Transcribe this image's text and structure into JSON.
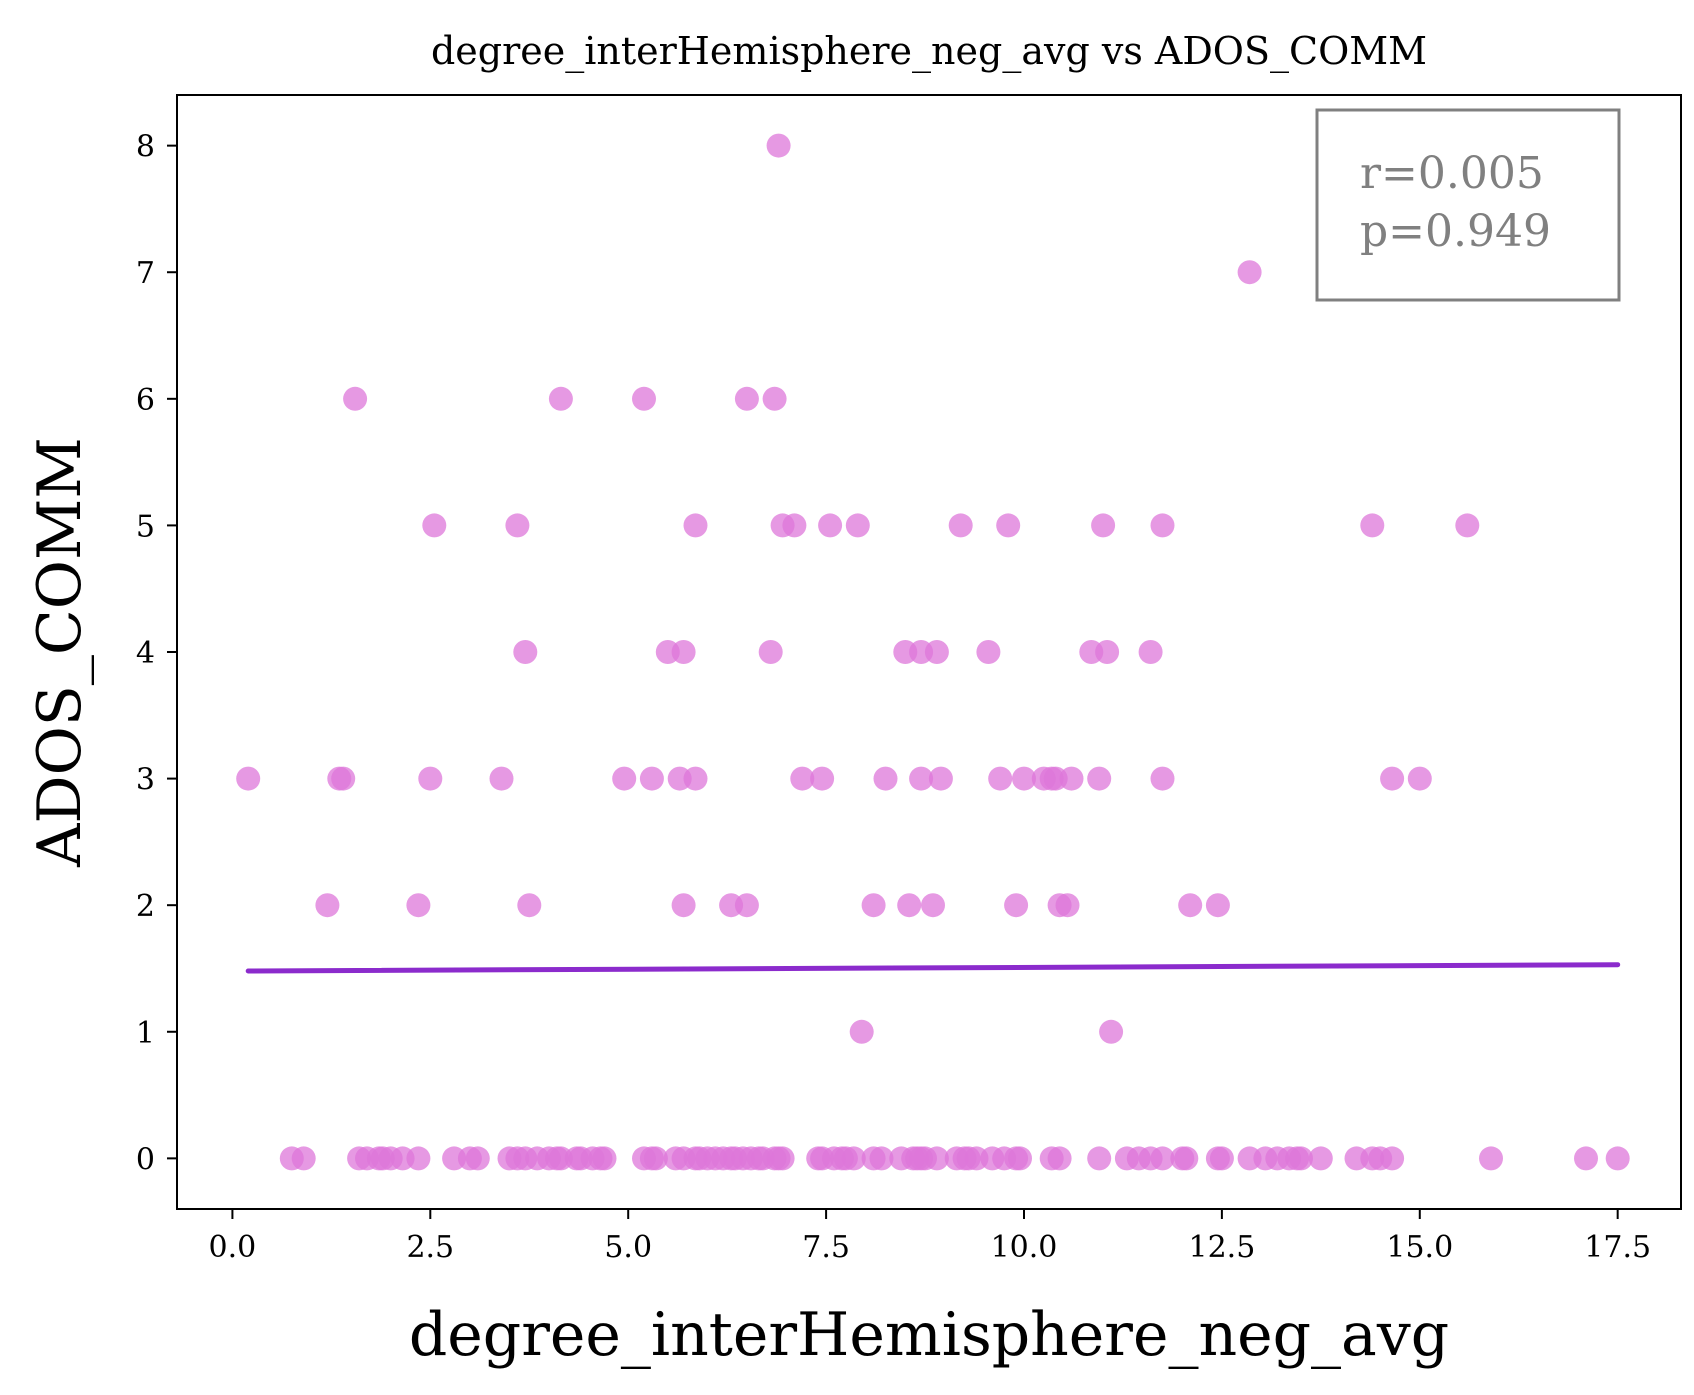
{
  "chart_data": {
    "type": "scatter",
    "title": "degree_interHemisphere_neg_avg vs ADOS_COMM",
    "xlabel": "degree_interHemisphere_neg_avg",
    "ylabel": "ADOS_COMM",
    "xlim": [
      -0.7,
      18.3
    ],
    "ylim": [
      -0.4,
      8.4
    ],
    "xticks": [
      0.0,
      2.5,
      5.0,
      7.5,
      10.0,
      12.5,
      15.0,
      17.5
    ],
    "xtick_labels": [
      "0.0",
      "2.5",
      "5.0",
      "7.5",
      "10.0",
      "12.5",
      "15.0",
      "17.5"
    ],
    "yticks": [
      0,
      1,
      2,
      3,
      4,
      5,
      6,
      7,
      8
    ],
    "ytick_labels": [
      "0",
      "1",
      "2",
      "3",
      "4",
      "5",
      "6",
      "7",
      "8"
    ],
    "grid": false,
    "point_color": "#dd77d9",
    "line_color": "#8b2bcc",
    "points": [
      {
        "x": 6.9,
        "y": 8
      },
      {
        "x": 12.85,
        "y": 7
      },
      {
        "x": 1.55,
        "y": 6
      },
      {
        "x": 4.15,
        "y": 6
      },
      {
        "x": 5.2,
        "y": 6
      },
      {
        "x": 6.5,
        "y": 6
      },
      {
        "x": 6.85,
        "y": 6
      },
      {
        "x": 2.55,
        "y": 5
      },
      {
        "x": 3.6,
        "y": 5
      },
      {
        "x": 5.85,
        "y": 5
      },
      {
        "x": 6.95,
        "y": 5
      },
      {
        "x": 7.1,
        "y": 5
      },
      {
        "x": 7.55,
        "y": 5
      },
      {
        "x": 7.9,
        "y": 5
      },
      {
        "x": 9.2,
        "y": 5
      },
      {
        "x": 9.8,
        "y": 5
      },
      {
        "x": 11.0,
        "y": 5
      },
      {
        "x": 11.75,
        "y": 5
      },
      {
        "x": 14.4,
        "y": 5
      },
      {
        "x": 15.6,
        "y": 5
      },
      {
        "x": 3.7,
        "y": 4
      },
      {
        "x": 5.5,
        "y": 4
      },
      {
        "x": 5.7,
        "y": 4
      },
      {
        "x": 6.8,
        "y": 4
      },
      {
        "x": 8.5,
        "y": 4
      },
      {
        "x": 8.7,
        "y": 4
      },
      {
        "x": 8.9,
        "y": 4
      },
      {
        "x": 9.55,
        "y": 4
      },
      {
        "x": 10.85,
        "y": 4
      },
      {
        "x": 11.05,
        "y": 4
      },
      {
        "x": 11.6,
        "y": 4
      },
      {
        "x": 0.2,
        "y": 3
      },
      {
        "x": 1.35,
        "y": 3
      },
      {
        "x": 1.4,
        "y": 3
      },
      {
        "x": 2.5,
        "y": 3
      },
      {
        "x": 3.4,
        "y": 3
      },
      {
        "x": 4.95,
        "y": 3
      },
      {
        "x": 5.3,
        "y": 3
      },
      {
        "x": 5.65,
        "y": 3
      },
      {
        "x": 5.85,
        "y": 3
      },
      {
        "x": 7.2,
        "y": 3
      },
      {
        "x": 7.45,
        "y": 3
      },
      {
        "x": 8.25,
        "y": 3
      },
      {
        "x": 8.7,
        "y": 3
      },
      {
        "x": 8.95,
        "y": 3
      },
      {
        "x": 9.7,
        "y": 3
      },
      {
        "x": 10.0,
        "y": 3
      },
      {
        "x": 10.25,
        "y": 3
      },
      {
        "x": 10.35,
        "y": 3
      },
      {
        "x": 10.4,
        "y": 3
      },
      {
        "x": 10.6,
        "y": 3
      },
      {
        "x": 10.95,
        "y": 3
      },
      {
        "x": 11.75,
        "y": 3
      },
      {
        "x": 14.65,
        "y": 3
      },
      {
        "x": 15.0,
        "y": 3
      },
      {
        "x": 1.2,
        "y": 2
      },
      {
        "x": 2.35,
        "y": 2
      },
      {
        "x": 3.75,
        "y": 2
      },
      {
        "x": 5.7,
        "y": 2
      },
      {
        "x": 6.3,
        "y": 2
      },
      {
        "x": 6.5,
        "y": 2
      },
      {
        "x": 8.1,
        "y": 2
      },
      {
        "x": 8.55,
        "y": 2
      },
      {
        "x": 8.85,
        "y": 2
      },
      {
        "x": 9.9,
        "y": 2
      },
      {
        "x": 10.45,
        "y": 2
      },
      {
        "x": 10.55,
        "y": 2
      },
      {
        "x": 12.1,
        "y": 2
      },
      {
        "x": 12.45,
        "y": 2
      },
      {
        "x": 7.95,
        "y": 1
      },
      {
        "x": 11.1,
        "y": 1
      },
      {
        "x": 0.75,
        "y": 0
      },
      {
        "x": 0.9,
        "y": 0
      },
      {
        "x": 1.6,
        "y": 0
      },
      {
        "x": 1.7,
        "y": 0
      },
      {
        "x": 1.85,
        "y": 0
      },
      {
        "x": 1.9,
        "y": 0
      },
      {
        "x": 2.0,
        "y": 0
      },
      {
        "x": 2.15,
        "y": 0
      },
      {
        "x": 2.35,
        "y": 0
      },
      {
        "x": 2.8,
        "y": 0
      },
      {
        "x": 3.0,
        "y": 0
      },
      {
        "x": 3.1,
        "y": 0
      },
      {
        "x": 3.5,
        "y": 0
      },
      {
        "x": 3.6,
        "y": 0
      },
      {
        "x": 3.7,
        "y": 0
      },
      {
        "x": 3.85,
        "y": 0
      },
      {
        "x": 4.0,
        "y": 0
      },
      {
        "x": 4.1,
        "y": 0
      },
      {
        "x": 4.15,
        "y": 0
      },
      {
        "x": 4.35,
        "y": 0
      },
      {
        "x": 4.4,
        "y": 0
      },
      {
        "x": 4.55,
        "y": 0
      },
      {
        "x": 4.65,
        "y": 0
      },
      {
        "x": 4.7,
        "y": 0
      },
      {
        "x": 5.2,
        "y": 0
      },
      {
        "x": 5.3,
        "y": 0
      },
      {
        "x": 5.35,
        "y": 0
      },
      {
        "x": 5.6,
        "y": 0
      },
      {
        "x": 5.7,
        "y": 0
      },
      {
        "x": 5.85,
        "y": 0
      },
      {
        "x": 5.9,
        "y": 0
      },
      {
        "x": 6.0,
        "y": 0
      },
      {
        "x": 6.1,
        "y": 0
      },
      {
        "x": 6.2,
        "y": 0
      },
      {
        "x": 6.3,
        "y": 0
      },
      {
        "x": 6.35,
        "y": 0
      },
      {
        "x": 6.45,
        "y": 0
      },
      {
        "x": 6.55,
        "y": 0
      },
      {
        "x": 6.65,
        "y": 0
      },
      {
        "x": 6.7,
        "y": 0
      },
      {
        "x": 6.85,
        "y": 0
      },
      {
        "x": 6.9,
        "y": 0
      },
      {
        "x": 6.95,
        "y": 0
      },
      {
        "x": 7.4,
        "y": 0
      },
      {
        "x": 7.45,
        "y": 0
      },
      {
        "x": 7.6,
        "y": 0
      },
      {
        "x": 7.7,
        "y": 0
      },
      {
        "x": 7.75,
        "y": 0
      },
      {
        "x": 7.85,
        "y": 0
      },
      {
        "x": 8.1,
        "y": 0
      },
      {
        "x": 8.2,
        "y": 0
      },
      {
        "x": 8.45,
        "y": 0
      },
      {
        "x": 8.6,
        "y": 0
      },
      {
        "x": 8.65,
        "y": 0
      },
      {
        "x": 8.7,
        "y": 0
      },
      {
        "x": 8.75,
        "y": 0
      },
      {
        "x": 8.9,
        "y": 0
      },
      {
        "x": 9.15,
        "y": 0
      },
      {
        "x": 9.25,
        "y": 0
      },
      {
        "x": 9.3,
        "y": 0
      },
      {
        "x": 9.4,
        "y": 0
      },
      {
        "x": 9.6,
        "y": 0
      },
      {
        "x": 9.75,
        "y": 0
      },
      {
        "x": 9.9,
        "y": 0
      },
      {
        "x": 9.95,
        "y": 0
      },
      {
        "x": 10.35,
        "y": 0
      },
      {
        "x": 10.45,
        "y": 0
      },
      {
        "x": 10.95,
        "y": 0
      },
      {
        "x": 11.3,
        "y": 0
      },
      {
        "x": 11.45,
        "y": 0
      },
      {
        "x": 11.6,
        "y": 0
      },
      {
        "x": 11.75,
        "y": 0
      },
      {
        "x": 12.0,
        "y": 0
      },
      {
        "x": 12.05,
        "y": 0
      },
      {
        "x": 12.45,
        "y": 0
      },
      {
        "x": 12.5,
        "y": 0
      },
      {
        "x": 12.85,
        "y": 0
      },
      {
        "x": 13.05,
        "y": 0
      },
      {
        "x": 13.2,
        "y": 0
      },
      {
        "x": 13.35,
        "y": 0
      },
      {
        "x": 13.45,
        "y": 0
      },
      {
        "x": 13.5,
        "y": 0
      },
      {
        "x": 13.75,
        "y": 0
      },
      {
        "x": 14.2,
        "y": 0
      },
      {
        "x": 14.4,
        "y": 0
      },
      {
        "x": 14.5,
        "y": 0
      },
      {
        "x": 14.65,
        "y": 0
      },
      {
        "x": 15.9,
        "y": 0
      },
      {
        "x": 17.1,
        "y": 0
      },
      {
        "x": 17.5,
        "y": 0
      }
    ],
    "fit_line": {
      "x": [
        0.2,
        17.5
      ],
      "y": [
        1.48,
        1.53
      ]
    },
    "stats": {
      "r_text": "r=0.005",
      "p_text": "p=0.949"
    },
    "stats_placement": "top-right"
  }
}
